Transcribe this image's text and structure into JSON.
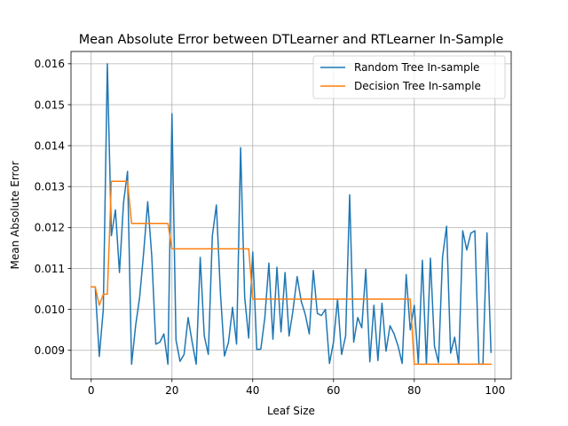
{
  "chart_data": {
    "type": "line",
    "title": "Mean Absolute Error between DTLearner and RTLearner In-Sample",
    "xlabel": "Leaf Size",
    "ylabel": "Mean Absolute Error",
    "xlim": [
      -5,
      104
    ],
    "ylim": [
      0.0083,
      0.0163
    ],
    "grid": true,
    "legend_position": "top-right",
    "x_ticks": [
      0,
      20,
      40,
      60,
      80,
      100
    ],
    "x_tick_labels": [
      "0",
      "20",
      "40",
      "60",
      "80",
      "100"
    ],
    "y_ticks": [
      0.009,
      0.01,
      0.011,
      0.012,
      0.013,
      0.014,
      0.015,
      0.016
    ],
    "y_tick_labels": [
      "0.009",
      "0.010",
      "0.011",
      "0.012",
      "0.013",
      "0.014",
      "0.015",
      "0.016"
    ],
    "series": [
      {
        "name": "Random Tree In-sample",
        "color": "#1f77b4",
        "x": [
          0,
          1,
          2,
          3,
          4,
          5,
          6,
          7,
          8,
          9,
          10,
          11,
          12,
          13,
          14,
          15,
          16,
          17,
          18,
          19,
          20,
          21,
          22,
          23,
          24,
          25,
          26,
          27,
          28,
          29,
          30,
          31,
          32,
          33,
          34,
          35,
          36,
          37,
          38,
          39,
          40,
          41,
          42,
          43,
          44,
          45,
          46,
          47,
          48,
          49,
          50,
          51,
          52,
          53,
          54,
          55,
          56,
          57,
          58,
          59,
          60,
          61,
          62,
          63,
          64,
          65,
          66,
          67,
          68,
          69,
          70,
          71,
          72,
          73,
          74,
          75,
          76,
          77,
          78,
          79,
          80,
          81,
          82,
          83,
          84,
          85,
          86,
          87,
          88,
          89,
          90,
          91,
          92,
          93,
          94,
          95,
          96,
          97,
          98,
          99
        ],
        "values": [
          0.01055,
          0.01055,
          0.00885,
          0.01,
          0.016,
          0.0118,
          0.01243,
          0.0109,
          0.0126,
          0.01337,
          0.00866,
          0.0096,
          0.0103,
          0.0114,
          0.01263,
          0.0113,
          0.00915,
          0.0092,
          0.0094,
          0.00866,
          0.01478,
          0.00925,
          0.00873,
          0.0089,
          0.0098,
          0.0092,
          0.00866,
          0.01127,
          0.00935,
          0.0089,
          0.0118,
          0.01255,
          0.0104,
          0.00886,
          0.0092,
          0.01005,
          0.00915,
          0.01395,
          0.0103,
          0.0093,
          0.0114,
          0.00902,
          0.00903,
          0.0098,
          0.01113,
          0.00927,
          0.01103,
          0.00945,
          0.0109,
          0.00935,
          0.01,
          0.0108,
          0.0102,
          0.00988,
          0.0094,
          0.01095,
          0.0099,
          0.00985,
          0.01,
          0.00868,
          0.0092,
          0.01025,
          0.0089,
          0.00935,
          0.0128,
          0.0092,
          0.0098,
          0.00955,
          0.01098,
          0.00872,
          0.0101,
          0.00875,
          0.01015,
          0.00898,
          0.0096,
          0.0094,
          0.0091,
          0.00868,
          0.01085,
          0.0095,
          0.0101,
          0.00868,
          0.0112,
          0.00866,
          0.01125,
          0.0091,
          0.0087,
          0.01128,
          0.01203,
          0.00893,
          0.00932,
          0.00866,
          0.01192,
          0.01145,
          0.01186,
          0.01192,
          0.00866,
          0.00866,
          0.01187,
          0.00895
        ]
      },
      {
        "name": "Decision Tree In-sample",
        "color": "#ff7f0e",
        "x": [
          0,
          1,
          2,
          3,
          4,
          5,
          6,
          7,
          8,
          9,
          10,
          11,
          12,
          13,
          14,
          15,
          16,
          17,
          18,
          19,
          20,
          21,
          22,
          23,
          24,
          25,
          26,
          27,
          28,
          29,
          30,
          31,
          32,
          33,
          34,
          35,
          36,
          37,
          38,
          39,
          40,
          41,
          42,
          43,
          44,
          45,
          46,
          47,
          48,
          49,
          50,
          51,
          52,
          53,
          54,
          55,
          56,
          57,
          58,
          59,
          60,
          61,
          62,
          63,
          64,
          65,
          66,
          67,
          68,
          69,
          70,
          71,
          72,
          73,
          74,
          75,
          76,
          77,
          78,
          79,
          80,
          81,
          82,
          83,
          84,
          85,
          86,
          87,
          88,
          89,
          90,
          91,
          92,
          93,
          94,
          95,
          96,
          97,
          98,
          99
        ],
        "values": [
          0.01055,
          0.01055,
          0.0101,
          0.01037,
          0.01037,
          0.01313,
          0.01313,
          0.01313,
          0.01313,
          0.01313,
          0.0121,
          0.0121,
          0.0121,
          0.0121,
          0.0121,
          0.0121,
          0.0121,
          0.0121,
          0.0121,
          0.0121,
          0.01148,
          0.01148,
          0.01148,
          0.01148,
          0.01148,
          0.01148,
          0.01148,
          0.01148,
          0.01148,
          0.01148,
          0.01148,
          0.01148,
          0.01148,
          0.01148,
          0.01148,
          0.01148,
          0.01148,
          0.01148,
          0.01148,
          0.01148,
          0.01025,
          0.01025,
          0.01025,
          0.01025,
          0.01025,
          0.01025,
          0.01025,
          0.01025,
          0.01025,
          0.01025,
          0.01025,
          0.01025,
          0.01025,
          0.01025,
          0.01025,
          0.01025,
          0.01025,
          0.01025,
          0.01025,
          0.01025,
          0.01025,
          0.01025,
          0.01025,
          0.01025,
          0.01025,
          0.01025,
          0.01025,
          0.01025,
          0.01025,
          0.01025,
          0.01025,
          0.01025,
          0.01025,
          0.01025,
          0.01025,
          0.01025,
          0.01025,
          0.01025,
          0.01025,
          0.01025,
          0.00866,
          0.00866,
          0.00866,
          0.00866,
          0.00866,
          0.00866,
          0.00866,
          0.00866,
          0.00866,
          0.00866,
          0.00866,
          0.00866,
          0.00866,
          0.00866,
          0.00866,
          0.00866,
          0.00866,
          0.00866,
          0.00866,
          0.00866
        ]
      }
    ]
  }
}
